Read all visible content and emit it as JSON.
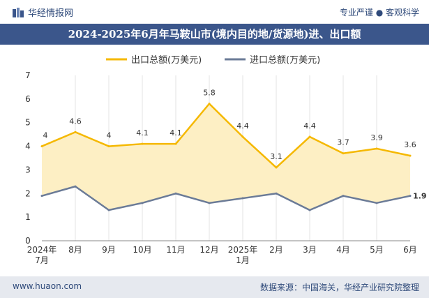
{
  "header": {
    "brand_name": "华经情报网",
    "slogan": "专业严谨 ● 客观科学"
  },
  "chart_data": {
    "type": "line",
    "title": "2024-2025年6月年马鞍山市(境内目的地/货源地)进、出口额",
    "categories": [
      [
        "2024年",
        "7月"
      ],
      [
        "8月"
      ],
      [
        "9月"
      ],
      [
        "10月"
      ],
      [
        "11月"
      ],
      [
        "12月"
      ],
      [
        "2025年",
        "1月"
      ],
      [
        "2月"
      ],
      [
        "3月"
      ],
      [
        "4月"
      ],
      [
        "5月"
      ],
      [
        "6月"
      ]
    ],
    "series": [
      {
        "name": "出口总额(万美元)",
        "color": "#f5b800",
        "values": [
          4,
          4.6,
          4,
          4.1,
          4.1,
          5.8,
          4.4,
          3.1,
          4.4,
          3.7,
          3.9,
          3.6
        ],
        "labels": [
          "4",
          "4.6",
          "4",
          "4.1",
          "4.1",
          "5.8",
          "4.4",
          "3.1",
          "4.4",
          "3.7",
          "3.9",
          "3.6"
        ]
      },
      {
        "name": "进口总额(万美元)",
        "color": "#6b7b97",
        "values": [
          1.9,
          2.3,
          1.3,
          1.6,
          2.0,
          1.6,
          1.8,
          2.0,
          1.3,
          1.9,
          1.6,
          1.9
        ],
        "labels": [
          "",
          "",
          "",
          "",
          "",
          "",
          "",
          "",
          "",
          "",
          "",
          "1.9"
        ]
      }
    ],
    "fill_between": "#fdefc4",
    "ylim": [
      0,
      7
    ],
    "yticks": [
      "0",
      "1",
      "2",
      "3",
      "4",
      "5",
      "6",
      "7"
    ],
    "legend_position": "top-center",
    "grid": "vertical"
  },
  "footer": {
    "website": "www.huaon.com",
    "source": "数据来源：中国海关，华经产业研究院整理"
  }
}
